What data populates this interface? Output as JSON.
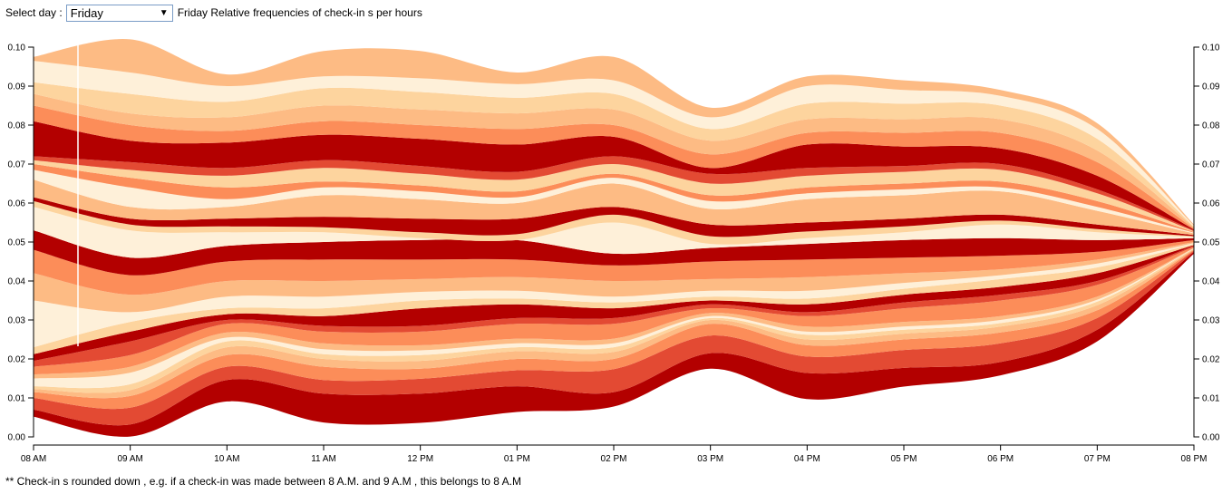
{
  "controls": {
    "select_label": "Select day :",
    "selected_day": "Friday",
    "title": "Friday Relative frequencies of check-in s per hours"
  },
  "footnote": "** Check-in s rounded down , e.g. if a check-in was made between 8 A.M. and 9 A.M , this belongs to 8 A.M",
  "colors": {
    "darkest": "#b30000",
    "dark": "#e34a33",
    "mid": "#fc8d59",
    "light": "#fdbb84",
    "lighter": "#fdd49e",
    "lightest": "#fef0d9"
  },
  "chart_data": {
    "type": "area",
    "subtype": "streamgraph (wiggle offset)",
    "categories": [
      "08 AM",
      "09 AM",
      "10 AM",
      "11 AM",
      "12 PM",
      "01 PM",
      "02 PM",
      "03 PM",
      "04 PM",
      "05 PM",
      "06 PM",
      "07 PM",
      "08 PM"
    ],
    "y_ticks": [
      "0.00",
      "0.01",
      "0.02",
      "0.03",
      "0.04",
      "0.05",
      "0.06",
      "0.07",
      "0.08",
      "0.09",
      "0.10"
    ],
    "ylim": [
      0,
      0.1
    ],
    "axes": "left and right",
    "layer_boundaries": [
      [
        0.0052,
        0.0001,
        0.0091,
        0.0037,
        0.0036,
        0.0064,
        0.0078,
        0.0175,
        0.0097,
        0.0129,
        0.0158,
        0.0245,
        0.047
      ],
      [
        0.007,
        0.0032,
        0.0146,
        0.0111,
        0.0111,
        0.013,
        0.0115,
        0.0215,
        0.0164,
        0.0177,
        0.0192,
        0.0275,
        0.0475
      ],
      [
        0.01,
        0.0075,
        0.018,
        0.0146,
        0.0149,
        0.0171,
        0.0174,
        0.026,
        0.0206,
        0.0223,
        0.024,
        0.0305,
        0.0478
      ],
      [
        0.0115,
        0.0105,
        0.021,
        0.018,
        0.0175,
        0.02,
        0.02,
        0.029,
        0.0235,
        0.025,
        0.0268,
        0.0325,
        0.048
      ],
      [
        0.0123,
        0.012,
        0.023,
        0.02,
        0.0195,
        0.022,
        0.0218,
        0.03,
        0.025,
        0.0265,
        0.0283,
        0.0338,
        0.0482
      ],
      [
        0.013,
        0.0135,
        0.0245,
        0.0212,
        0.021,
        0.023,
        0.023,
        0.0305,
        0.0262,
        0.0275,
        0.0292,
        0.0347,
        0.0483
      ],
      [
        0.015,
        0.0165,
        0.0255,
        0.0225,
        0.0222,
        0.024,
        0.024,
        0.031,
        0.027,
        0.0283,
        0.03,
        0.0352,
        0.0484
      ],
      [
        0.016,
        0.018,
        0.0268,
        0.024,
        0.0235,
        0.0252,
        0.0252,
        0.0318,
        0.0283,
        0.0295,
        0.031,
        0.036,
        0.0485
      ],
      [
        0.018,
        0.021,
        0.029,
        0.027,
        0.027,
        0.029,
        0.029,
        0.033,
        0.031,
        0.033,
        0.035,
        0.039,
        0.0488
      ],
      [
        0.0195,
        0.0245,
        0.03,
        0.0285,
        0.0285,
        0.0305,
        0.0305,
        0.034,
        0.032,
        0.0345,
        0.0365,
        0.04,
        0.049
      ],
      [
        0.0212,
        0.027,
        0.0315,
        0.031,
        0.033,
        0.034,
        0.033,
        0.035,
        0.034,
        0.0365,
        0.0385,
        0.042,
        0.0492
      ],
      [
        0.023,
        0.0295,
        0.033,
        0.033,
        0.035,
        0.0355,
        0.0345,
        0.036,
        0.0355,
        0.038,
        0.0405,
        0.0435,
        0.0495
      ],
      [
        0.035,
        0.032,
        0.036,
        0.036,
        0.0372,
        0.0375,
        0.036,
        0.0375,
        0.0375,
        0.0395,
        0.0415,
        0.0445,
        0.0497
      ],
      [
        0.042,
        0.0365,
        0.04,
        0.04,
        0.0405,
        0.041,
        0.04,
        0.0405,
        0.041,
        0.042,
        0.043,
        0.0455,
        0.05
      ],
      [
        0.048,
        0.0415,
        0.045,
        0.0455,
        0.0455,
        0.0455,
        0.044,
        0.045,
        0.0455,
        0.046,
        0.0465,
        0.0475,
        0.0505
      ],
      [
        0.053,
        0.046,
        0.049,
        0.05,
        0.0505,
        0.0505,
        0.047,
        0.0485,
        0.0495,
        0.0505,
        0.051,
        0.0505,
        0.051
      ],
      [
        0.059,
        0.053,
        0.0525,
        0.0525,
        0.051,
        0.0505,
        0.055,
        0.0495,
        0.051,
        0.0525,
        0.0545,
        0.0525,
        0.0513
      ],
      [
        0.0605,
        0.0545,
        0.054,
        0.0538,
        0.0525,
        0.052,
        0.057,
        0.0515,
        0.0527,
        0.054,
        0.0555,
        0.0533,
        0.0515
      ],
      [
        0.0615,
        0.056,
        0.056,
        0.0565,
        0.056,
        0.056,
        0.059,
        0.0545,
        0.055,
        0.056,
        0.057,
        0.0545,
        0.0518
      ],
      [
        0.066,
        0.059,
        0.059,
        0.062,
        0.061,
        0.06,
        0.065,
        0.0585,
        0.061,
        0.062,
        0.063,
        0.058,
        0.0522
      ],
      [
        0.0685,
        0.064,
        0.061,
        0.064,
        0.063,
        0.0615,
        0.0665,
        0.0605,
        0.0625,
        0.0635,
        0.064,
        0.059,
        0.0524
      ],
      [
        0.07,
        0.0665,
        0.064,
        0.0655,
        0.0645,
        0.063,
        0.0675,
        0.062,
        0.064,
        0.065,
        0.0655,
        0.0605,
        0.0526
      ],
      [
        0.071,
        0.0685,
        0.067,
        0.069,
        0.0675,
        0.066,
        0.07,
        0.065,
        0.067,
        0.068,
        0.0685,
        0.0625,
        0.0528
      ],
      [
        0.072,
        0.0705,
        0.069,
        0.071,
        0.0695,
        0.068,
        0.072,
        0.0675,
        0.069,
        0.0695,
        0.07,
        0.0635,
        0.053
      ],
      [
        0.081,
        0.076,
        0.0755,
        0.0775,
        0.0765,
        0.075,
        0.077,
        0.069,
        0.075,
        0.0745,
        0.074,
        0.067,
        0.0532
      ],
      [
        0.085,
        0.08,
        0.0785,
        0.081,
        0.08,
        0.079,
        0.08,
        0.0725,
        0.078,
        0.078,
        0.078,
        0.0705,
        0.0535
      ],
      [
        0.088,
        0.083,
        0.082,
        0.085,
        0.084,
        0.083,
        0.084,
        0.076,
        0.0815,
        0.0815,
        0.0815,
        0.0735,
        0.0538
      ],
      [
        0.091,
        0.088,
        0.086,
        0.0895,
        0.0885,
        0.087,
        0.088,
        0.079,
        0.0855,
        0.0855,
        0.085,
        0.0765,
        0.054
      ],
      [
        0.0965,
        0.0935,
        0.09,
        0.0925,
        0.092,
        0.0905,
        0.0915,
        0.082,
        0.09,
        0.089,
        0.0875,
        0.079,
        0.0542
      ],
      [
        0.0975,
        0.102,
        0.093,
        0.099,
        0.099,
        0.0935,
        0.0975,
        0.0845,
        0.0925,
        0.0915,
        0.089,
        0.0805,
        0.0545
      ]
    ],
    "layer_colors": [
      "#b30000",
      "#e34a33",
      "#fc8d59",
      "#fdbb84",
      "#fdd49e",
      "#fef0d9",
      "#fdbb84",
      "#fc8d59",
      "#e34a33",
      "#b30000",
      "#fdd49e",
      "#fef0d9",
      "#fdbb84",
      "#fc8d59",
      "#b30000",
      "#fef0d9",
      "#fdd49e",
      "#b30000",
      "#fdbb84",
      "#fef0d9",
      "#fc8d59",
      "#fdd49e",
      "#e34a33",
      "#b30000",
      "#fc8d59",
      "#fdbb84",
      "#fdd49e",
      "#fef0d9",
      "#fdbb84"
    ]
  }
}
